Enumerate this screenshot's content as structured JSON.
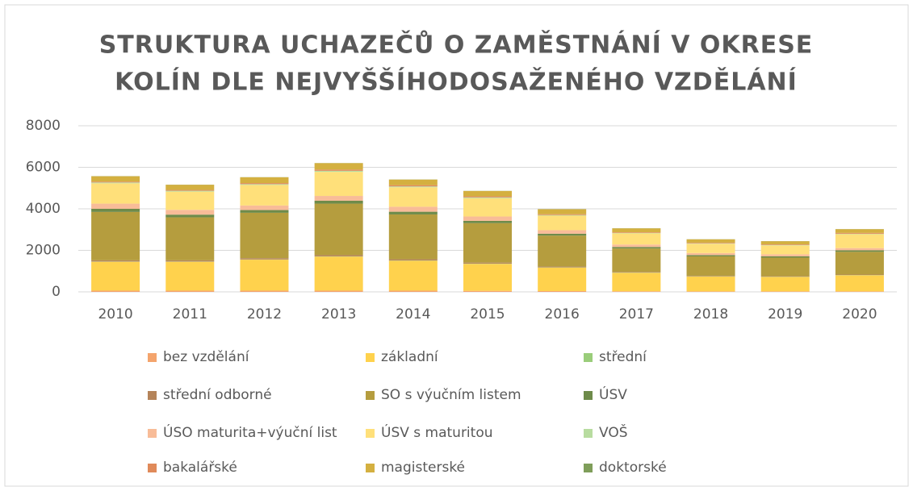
{
  "chart_data": {
    "type": "stacked_bar",
    "title": [
      "STRUKTURA UCHAZEČŮ O ZAMĚSTNÁNÍ V OKRESE",
      "KOLÍN DLE NEJVYŠŠÍHODOSAŽENÉHO VZDĚLÁNÍ"
    ],
    "categories": [
      "2010",
      "2011",
      "2012",
      "2013",
      "2014",
      "2015",
      "2016",
      "2017",
      "2018",
      "2019",
      "2020"
    ],
    "ylim": [
      0,
      8000
    ],
    "yticks": [
      0,
      2000,
      4000,
      6000,
      8000
    ],
    "grid": true,
    "series": [
      {
        "name": "bez vzdělání",
        "color": "#f4a46c",
        "values": [
          60,
          60,
          60,
          60,
          60,
          50,
          40,
          30,
          25,
          25,
          25
        ]
      },
      {
        "name": "základní",
        "color": "#ffd24d",
        "values": [
          1390,
          1390,
          1490,
          1640,
          1440,
          1300,
          1130,
          890,
          715,
          695,
          775
        ]
      },
      {
        "name": "střední",
        "color": "#9acd7a",
        "values": [
          10,
          10,
          10,
          10,
          10,
          10,
          10,
          10,
          10,
          10,
          10
        ]
      },
      {
        "name": "střední odborné",
        "color": "#b5845a",
        "values": [
          60,
          60,
          60,
          60,
          60,
          50,
          40,
          30,
          25,
          25,
          25
        ]
      },
      {
        "name": "SO s výučním listem",
        "color": "#b59d3e",
        "values": [
          2330,
          2070,
          2190,
          2480,
          2160,
          1900,
          1490,
          1130,
          935,
          895,
          1095
        ]
      },
      {
        "name": "ÚSV",
        "color": "#6e8b4a",
        "values": [
          150,
          130,
          130,
          140,
          130,
          110,
          90,
          70,
          60,
          60,
          70
        ]
      },
      {
        "name": "ÚSO maturita+výuční list",
        "color": "#f8bc98",
        "values": [
          250,
          230,
          220,
          230,
          240,
          210,
          170,
          120,
          100,
          100,
          110
        ]
      },
      {
        "name": "ÚSV s maturitou",
        "color": "#ffe07a",
        "values": [
          980,
          880,
          990,
          1160,
          940,
          880,
          700,
          540,
          450,
          430,
          670
        ]
      },
      {
        "name": "VOŠ",
        "color": "#b8dca0",
        "values": [
          40,
          40,
          40,
          50,
          40,
          40,
          30,
          20,
          20,
          20,
          20
        ]
      },
      {
        "name": "bakalářské",
        "color": "#e08a5a",
        "values": [
          40,
          40,
          50,
          60,
          60,
          50,
          40,
          30,
          30,
          30,
          40
        ]
      },
      {
        "name": "magisterské",
        "color": "#d4b040",
        "values": [
          260,
          250,
          280,
          310,
          270,
          260,
          240,
          190,
          160,
          150,
          180
        ]
      },
      {
        "name": "doktorské",
        "color": "#7f9e5a",
        "values": [
          5,
          5,
          5,
          5,
          5,
          5,
          5,
          5,
          5,
          5,
          5
        ]
      }
    ]
  }
}
